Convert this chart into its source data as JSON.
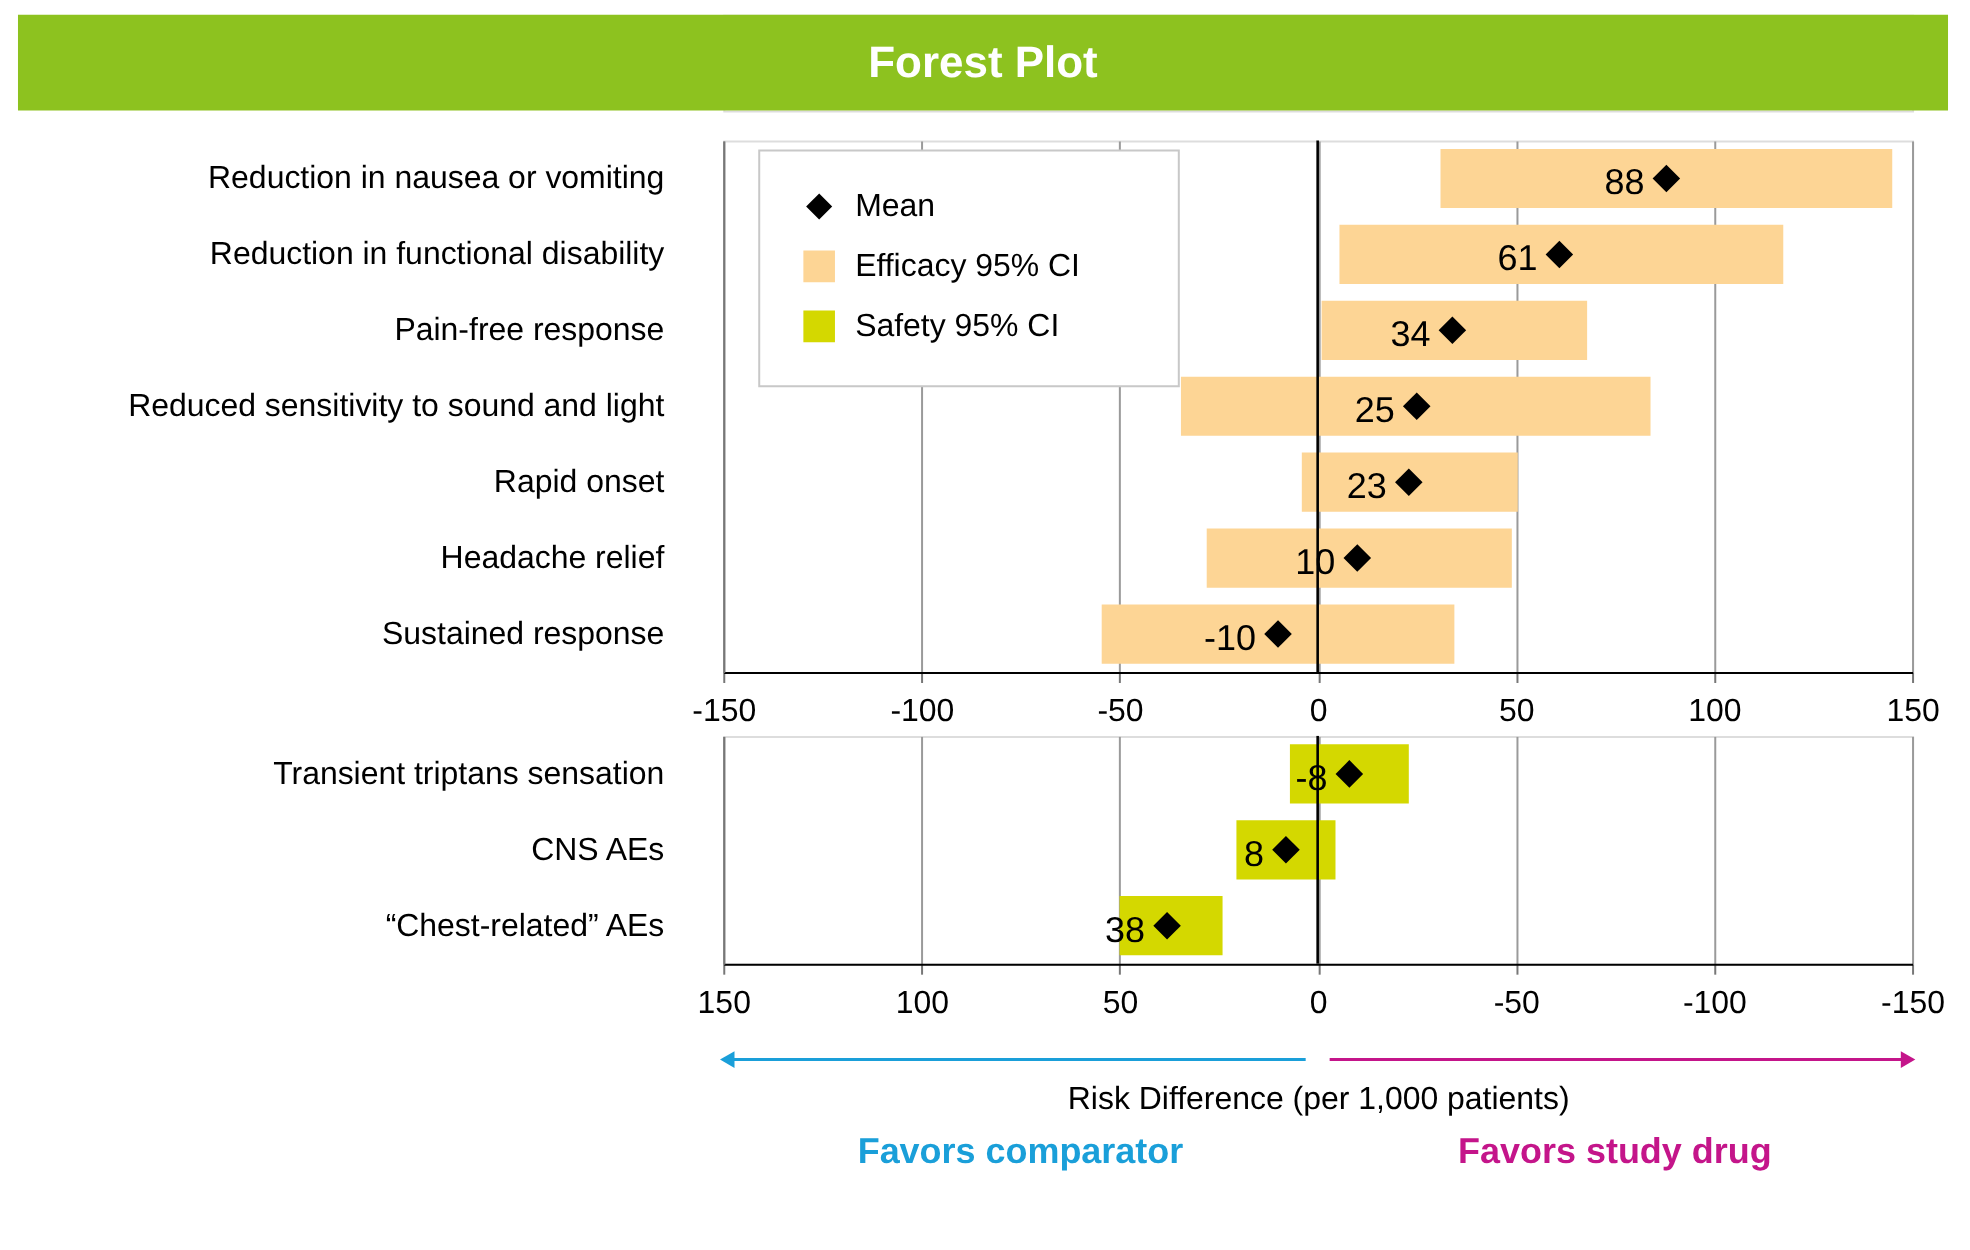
{
  "chart_data": [
    {
      "type": "bar",
      "orientation": "horizontal",
      "title": "Forest Plot",
      "categories": [
        "Reduction in nausea or vomiting",
        "Reduction in functional disability",
        "Pain-free response",
        "Reduced sensitivity to sound and light",
        "Rapid onset",
        "Headache relief",
        "Sustained response"
      ],
      "xlim": [
        -150,
        150
      ],
      "xticks": [
        -150,
        -100,
        -50,
        0,
        50,
        100,
        150
      ],
      "grid": "x",
      "legend": "top left",
      "ref_lines": [
        {
          "axis": "x",
          "value": 0,
          "color": "#000000"
        }
      ],
      "series": [
        {
          "name": "Mean",
          "type": "scatter",
          "marker": "diamond",
          "color": "#000000",
          "data_labels": true,
          "values": [
            88,
            61,
            34,
            25,
            23,
            10,
            -10
          ]
        },
        {
          "name": "Efficacy 95% CI",
          "color": "#fdd595",
          "base": [
            31,
            5.5,
            1,
            -34.5,
            -4,
            -28,
            -54.5
          ],
          "values": [
            114,
            112,
            67,
            118.5,
            54.5,
            77,
            89
          ]
        }
      ]
    },
    {
      "type": "bar",
      "orientation": "horizontal",
      "categories": [
        "Transient triptans sensation",
        "CNS AEs",
        "“Chest-related” AEs"
      ],
      "xlim": [
        150,
        -150
      ],
      "xticks": [
        150,
        100,
        50,
        0,
        -50,
        -100,
        -150
      ],
      "grid": "x",
      "xlabel": "Risk Difference (per 1,000 patients)",
      "annotations": [
        "Favors comparator",
        "Favors study drug"
      ],
      "ref_lines": [
        {
          "axis": "x",
          "value": 0,
          "color": "#000000"
        }
      ],
      "series": [
        {
          "name": "Safety 95% CI",
          "color": "#d4d800",
          "base": [
            -23,
            -4.5,
            24
          ],
          "values": [
            30,
            25,
            26
          ]
        },
        {
          "type": "scatter",
          "marker": "diamond",
          "color": "#000000",
          "data_labels": true,
          "values": [
            -8,
            8,
            38
          ]
        }
      ]
    }
  ]
}
